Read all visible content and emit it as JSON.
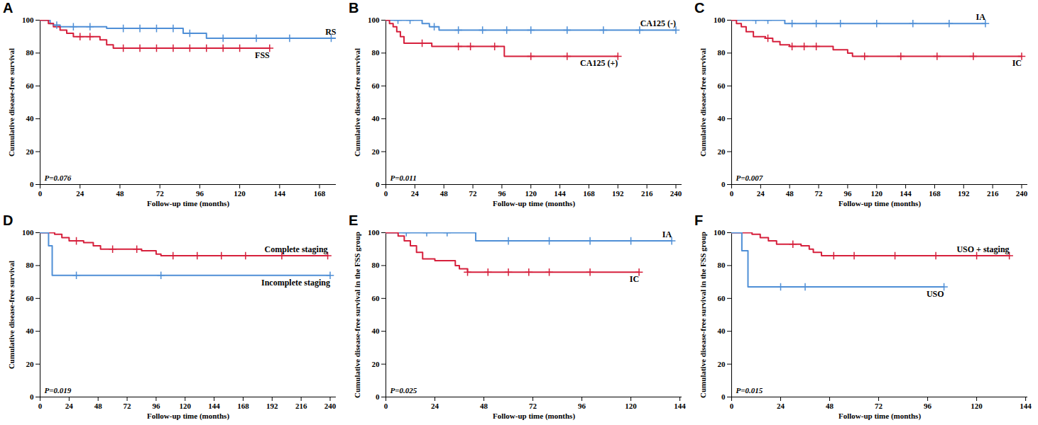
{
  "chart_data": [
    {
      "type": "line",
      "panel": "A",
      "x_label": "Follow-up time (months)",
      "y_label": "Cumulative disease-free survival",
      "annotation": "P=0.076",
      "xlim": [
        0,
        178
      ],
      "xticks": [
        0,
        24,
        48,
        72,
        96,
        120,
        144,
        168
      ],
      "ylim": [
        0,
        100
      ],
      "yticks": [
        0,
        20,
        40,
        60,
        80,
        100
      ],
      "series": [
        {
          "name": "RS",
          "color": "#4f8fd6",
          "x": [
            0,
            6,
            8,
            12,
            18,
            40,
            86,
            100,
            178
          ],
          "values": [
            100,
            98,
            97,
            96,
            96,
            95,
            92,
            89,
            89
          ],
          "censored": [
            10,
            20,
            30,
            50,
            60,
            70,
            80,
            90,
            110,
            130,
            150,
            175
          ]
        },
        {
          "name": "FSS",
          "color": "#d6203c",
          "x": [
            0,
            5,
            8,
            12,
            16,
            20,
            36,
            40,
            44,
            138
          ],
          "values": [
            100,
            98,
            96,
            94,
            92,
            90,
            88,
            85,
            83,
            83
          ],
          "censored": [
            24,
            30,
            50,
            60,
            70,
            80,
            90,
            100,
            110,
            120,
            138
          ]
        }
      ]
    },
    {
      "type": "line",
      "panel": "B",
      "x_label": "Follow-up time (months)",
      "y_label": "Cumulative disease-free survival",
      "annotation": "P=0.011",
      "xlim": [
        0,
        245
      ],
      "xticks": [
        0,
        24,
        48,
        72,
        96,
        120,
        144,
        168,
        192,
        216,
        240
      ],
      "ylim": [
        0,
        100
      ],
      "yticks": [
        0,
        20,
        40,
        60,
        80,
        100
      ],
      "series": [
        {
          "name": "CA125 (-)",
          "color": "#4f8fd6",
          "x": [
            0,
            30,
            36,
            44,
            240
          ],
          "values": [
            100,
            98,
            96,
            94,
            94
          ],
          "censored": [
            10,
            20,
            40,
            60,
            80,
            100,
            120,
            150,
            180,
            210,
            240
          ]
        },
        {
          "name": "CA125 (+)",
          "color": "#d6203c",
          "x": [
            0,
            3,
            6,
            9,
            12,
            15,
            38,
            98,
            192
          ],
          "values": [
            100,
            98,
            96,
            93,
            90,
            86,
            84,
            78,
            78
          ],
          "censored": [
            30,
            60,
            70,
            90,
            120,
            150,
            192
          ]
        }
      ]
    },
    {
      "type": "line",
      "panel": "C",
      "x_label": "Follow-up time (months)",
      "y_label": "Cumulative disease-free survival",
      "annotation": "P=0.007",
      "xlim": [
        0,
        245
      ],
      "xticks": [
        0,
        24,
        48,
        72,
        96,
        120,
        144,
        168,
        192,
        216,
        240
      ],
      "ylim": [
        0,
        100
      ],
      "yticks": [
        0,
        20,
        40,
        60,
        80,
        100
      ],
      "series": [
        {
          "name": "IA",
          "color": "#4f8fd6",
          "x": [
            0,
            44,
            210
          ],
          "values": [
            100,
            98,
            98
          ],
          "censored": [
            20,
            30,
            50,
            70,
            90,
            120,
            150,
            180,
            210
          ]
        },
        {
          "name": "IC",
          "color": "#d6203c",
          "x": [
            0,
            4,
            8,
            12,
            18,
            28,
            34,
            40,
            48,
            84,
            96,
            100,
            240
          ],
          "values": [
            100,
            98,
            96,
            93,
            90,
            89,
            87,
            85,
            84,
            82,
            80,
            78,
            78
          ],
          "censored": [
            30,
            50,
            60,
            70,
            110,
            140,
            170,
            200,
            240
          ]
        }
      ]
    },
    {
      "type": "line",
      "panel": "D",
      "x_label": "Follow-up time (months)",
      "y_label": "Cumulative disease-free survival",
      "annotation": "P=0.019",
      "xlim": [
        0,
        245
      ],
      "xticks": [
        0,
        24,
        48,
        72,
        96,
        120,
        144,
        168,
        192,
        216,
        240
      ],
      "ylim": [
        0,
        100
      ],
      "yticks": [
        0,
        20,
        40,
        60,
        80,
        100
      ],
      "series": [
        {
          "name": "Complete staging",
          "color": "#d6203c",
          "x": [
            0,
            10,
            12,
            18,
            24,
            36,
            44,
            50,
            84,
            96,
            100,
            238
          ],
          "values": [
            100,
            100,
            99,
            97,
            95,
            94,
            92,
            90,
            89,
            87,
            86,
            86
          ],
          "censored": [
            30,
            60,
            80,
            110,
            130,
            150,
            170,
            200,
            238
          ]
        },
        {
          "name": "Incomplete staging",
          "color": "#4f8fd6",
          "x": [
            0,
            7,
            10,
            240
          ],
          "values": [
            100,
            92,
            74,
            74
          ],
          "censored": [
            30,
            100,
            240
          ]
        }
      ]
    },
    {
      "type": "line",
      "panel": "E",
      "x_label": "Follow-up time (months)",
      "y_label": "Cumulative disease-free survival in the FSS group",
      "annotation": "P=0.025",
      "xlim": [
        0,
        145
      ],
      "xticks": [
        0,
        24,
        48,
        72,
        96,
        120,
        144
      ],
      "ylim": [
        0,
        100
      ],
      "yticks": [
        0,
        20,
        40,
        60,
        80,
        100
      ],
      "series": [
        {
          "name": "IA",
          "color": "#4f8fd6",
          "x": [
            0,
            44,
            140
          ],
          "values": [
            100,
            95,
            95
          ],
          "censored": [
            10,
            20,
            30,
            60,
            80,
            100,
            120,
            140
          ]
        },
        {
          "name": "IC",
          "color": "#d6203c",
          "x": [
            0,
            6,
            9,
            12,
            15,
            18,
            24,
            34,
            36,
            40,
            124
          ],
          "values": [
            100,
            98,
            95,
            92,
            88,
            84,
            83,
            80,
            78,
            76,
            76
          ],
          "censored": [
            40,
            50,
            60,
            70,
            80,
            100,
            124
          ]
        }
      ]
    },
    {
      "type": "line",
      "panel": "F",
      "x_label": "Follow-up time (months)",
      "y_label": "Cumulative disease-free survival in the FSS group",
      "annotation": "P=0.015",
      "xlim": [
        0,
        145
      ],
      "xticks": [
        0,
        24,
        48,
        72,
        96,
        120,
        144
      ],
      "ylim": [
        0,
        100
      ],
      "yticks": [
        0,
        20,
        40,
        60,
        80,
        100
      ],
      "series": [
        {
          "name": "USO + staging",
          "color": "#d6203c",
          "x": [
            0,
            8,
            10,
            14,
            18,
            22,
            34,
            38,
            40,
            44,
            136
          ],
          "values": [
            100,
            100,
            99,
            97,
            95,
            93,
            92,
            90,
            88,
            86,
            86
          ],
          "censored": [
            30,
            50,
            60,
            80,
            100,
            120,
            136
          ]
        },
        {
          "name": "USO",
          "color": "#4f8fd6",
          "x": [
            0,
            5,
            8,
            104
          ],
          "values": [
            100,
            89,
            67,
            67
          ],
          "censored": [
            24,
            36,
            104
          ]
        }
      ]
    }
  ]
}
